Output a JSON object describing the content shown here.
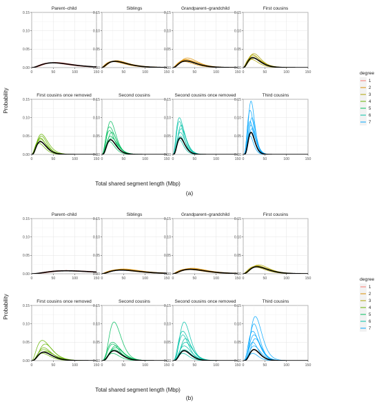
{
  "figure": {
    "sub_labels": [
      "(a)",
      "(b)"
    ],
    "x_axis_title": "Total shared segment length (Mbp)",
    "y_axis_title": "Probability",
    "legend": {
      "title": "degree",
      "colors": [
        "#F8766D",
        "#DB8E00",
        "#AEA200",
        "#64B200",
        "#00BD5C",
        "#00C1A7",
        "#00A6FF"
      ]
    }
  },
  "chart_data": [
    {
      "type": "line",
      "panel": "(a)",
      "xlim": [
        0,
        150
      ],
      "ylim": [
        0,
        0.15
      ],
      "x_ticks": [
        0,
        50,
        100,
        150
      ],
      "y_ticks": [
        0.0,
        0.05,
        0.1,
        0.15
      ],
      "grid": true,
      "legend_position": "right",
      "legend_title": "degree",
      "legend_entries": [
        "1",
        "2",
        "3",
        "4",
        "5",
        "6",
        "7"
      ],
      "xlabel": "Total shared segment length (Mbp)",
      "ylabel": "Probability",
      "facets": [
        {
          "title": "Parent–child",
          "degree": 1,
          "mean_peak_x": 50,
          "mean_peak_y": 0.013,
          "spread": 35,
          "runs_peak_y": [
            0.013,
            0.013,
            0.014
          ]
        },
        {
          "title": "Siblings",
          "degree": 2,
          "mean_peak_x": 30,
          "mean_peak_y": 0.017,
          "spread": 24,
          "runs_peak_y": [
            0.016,
            0.018,
            0.019,
            0.017
          ]
        },
        {
          "title": "Grandparent–grandchild",
          "degree": 2,
          "mean_peak_x": 30,
          "mean_peak_y": 0.018,
          "spread": 20,
          "runs_peak_y": [
            0.016,
            0.022,
            0.026,
            0.019,
            0.021
          ]
        },
        {
          "title": "First cousins",
          "degree": 3,
          "mean_peak_x": 22,
          "mean_peak_y": 0.027,
          "spread": 14,
          "runs_peak_y": [
            0.022,
            0.032,
            0.038,
            0.028,
            0.035,
            0.025
          ]
        },
        {
          "title": "First cousins once removed",
          "degree": 4,
          "mean_peak_x": 20,
          "mean_peak_y": 0.035,
          "spread": 11,
          "runs_peak_y": [
            0.03,
            0.042,
            0.05,
            0.038,
            0.045,
            0.055
          ]
        },
        {
          "title": "Second cousins",
          "degree": 5,
          "mean_peak_x": 20,
          "mean_peak_y": 0.04,
          "spread": 10,
          "runs_peak_y": [
            0.035,
            0.05,
            0.06,
            0.075,
            0.09,
            0.045,
            0.065
          ]
        },
        {
          "title": "Second cousins once removed",
          "degree": 6,
          "mean_peak_x": 17,
          "mean_peak_y": 0.045,
          "spread": 8,
          "runs_peak_y": [
            0.04,
            0.06,
            0.08,
            0.1,
            0.05,
            0.07,
            0.09
          ]
        },
        {
          "title": "Third cousins",
          "degree": 7,
          "mean_peak_x": 18,
          "mean_peak_y": 0.06,
          "spread": 6,
          "runs_peak_y": [
            0.05,
            0.08,
            0.1,
            0.12,
            0.145,
            0.07,
            0.09
          ]
        }
      ]
    },
    {
      "type": "line",
      "panel": "(b)",
      "xlim": [
        0,
        150
      ],
      "ylim": [
        0,
        0.15
      ],
      "x_ticks": [
        0,
        50,
        100,
        150
      ],
      "y_ticks": [
        0.0,
        0.05,
        0.1,
        0.15
      ],
      "grid": true,
      "legend_position": "right",
      "legend_title": "degree",
      "legend_entries": [
        "1",
        "2",
        "3",
        "4",
        "5",
        "6",
        "7"
      ],
      "xlabel": "Total shared segment length (Mbp)",
      "ylabel": "Probability",
      "facets": [
        {
          "title": "Parent–child",
          "degree": 1,
          "mean_peak_x": 80,
          "mean_peak_y": 0.008,
          "spread": 55,
          "runs_peak_y": [
            0.008,
            0.009,
            0.008
          ]
        },
        {
          "title": "Siblings",
          "degree": 2,
          "mean_peak_x": 45,
          "mean_peak_y": 0.01,
          "spread": 35,
          "runs_peak_y": [
            0.01,
            0.012,
            0.013,
            0.011
          ]
        },
        {
          "title": "Grandparent–grandchild",
          "degree": 2,
          "mean_peak_x": 40,
          "mean_peak_y": 0.012,
          "spread": 30,
          "runs_peak_y": [
            0.012,
            0.014,
            0.015,
            0.013,
            0.011
          ]
        },
        {
          "title": "First cousins",
          "degree": 3,
          "mean_peak_x": 32,
          "mean_peak_y": 0.019,
          "spread": 20,
          "runs_peak_y": [
            0.018,
            0.021,
            0.024,
            0.02,
            0.022
          ]
        },
        {
          "title": "First cousins once removed",
          "degree": 4,
          "mean_peak_x": 28,
          "mean_peak_y": 0.023,
          "spread": 15,
          "runs_peak_y": [
            0.02,
            0.03,
            0.045,
            0.055,
            0.035,
            0.025
          ]
        },
        {
          "title": "Second cousins",
          "degree": 5,
          "mean_peak_x": 28,
          "mean_peak_y": 0.027,
          "spread": 13,
          "runs_peak_y": [
            0.02,
            0.03,
            0.04,
            0.05,
            0.105,
            0.035,
            0.045
          ]
        },
        {
          "title": "Second cousins once removed",
          "degree": 6,
          "mean_peak_x": 26,
          "mean_peak_y": 0.027,
          "spread": 11,
          "runs_peak_y": [
            0.02,
            0.04,
            0.06,
            0.08,
            0.105,
            0.05,
            0.07,
            0.03
          ]
        },
        {
          "title": "Third cousins",
          "degree": 7,
          "mean_peak_x": 25,
          "mean_peak_y": 0.03,
          "spread": 10,
          "runs_peak_y": [
            0.02,
            0.04,
            0.06,
            0.08,
            0.1,
            0.12,
            0.05,
            0.07
          ]
        }
      ]
    }
  ]
}
